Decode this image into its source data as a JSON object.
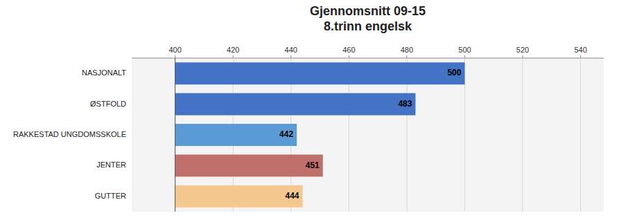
{
  "chart_data": {
    "type": "bar",
    "orientation": "horizontal",
    "title": [
      "Gjennomsnitt 09-15",
      "8.trinn engelsk"
    ],
    "categories": [
      "NASJONALT",
      "ØSTFOLD",
      "RAKKESTAD UNGDOMSSKOLE",
      "JENTER",
      "GUTTER"
    ],
    "values": [
      500,
      483,
      442,
      451,
      444
    ],
    "colors": [
      "#4472C4",
      "#4472C4",
      "#5B9BD5",
      "#C0706A",
      "#F5C890"
    ],
    "baseline": 400,
    "xlim": [
      385,
      548
    ],
    "xticks": [
      400,
      420,
      440,
      460,
      480,
      500,
      520,
      540
    ],
    "grid": true,
    "data_labels": true
  }
}
